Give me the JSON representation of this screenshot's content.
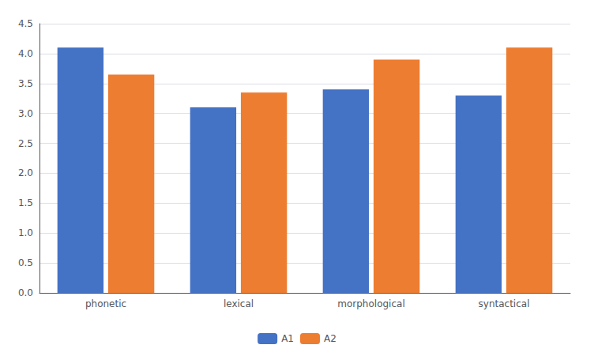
{
  "chart_data": {
    "type": "bar",
    "categories": [
      "phonetic",
      "lexical",
      "morphological",
      "syntactical"
    ],
    "series": [
      {
        "name": "A1",
        "color": "#4472C4",
        "values": [
          4.1,
          3.1,
          3.4,
          3.3
        ]
      },
      {
        "name": "A2",
        "color": "#ED7D31",
        "values": [
          3.65,
          3.35,
          3.9,
          4.1
        ]
      }
    ],
    "ylim": [
      0,
      4.5
    ],
    "yticks": [
      {
        "value": 0,
        "label": "0.0"
      },
      0.5,
      {
        "value": 1.0,
        "label": "1.0"
      },
      1.5,
      {
        "value": 2.0,
        "label": "2.0"
      },
      2.5,
      {
        "value": 3.0,
        "label": "3.0"
      },
      3.5,
      {
        "value": 4.0,
        "label": "4.0"
      },
      4.5
    ],
    "grid": true,
    "legend": "bottom"
  }
}
